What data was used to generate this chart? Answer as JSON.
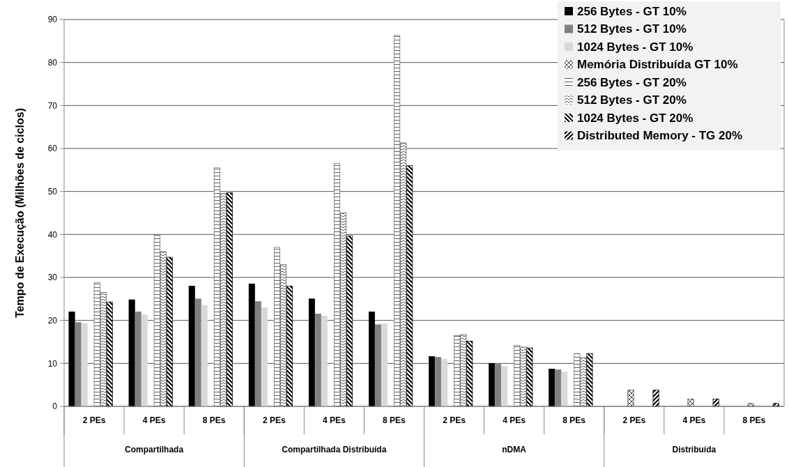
{
  "chart_data": {
    "type": "bar",
    "ylabel": "Tempo de Execução (Milhões de ciclos)",
    "categories": [
      "2 PEs",
      "4 PEs",
      "8 PEs",
      "2 PEs",
      "4 PEs",
      "8 PEs",
      "2 PEs",
      "4 PEs",
      "8 PEs",
      "2 PEs",
      "4 PEs",
      "8 PEs"
    ],
    "annotations": [
      "Compartilhada",
      "Compartilhada Distribuída",
      "nDMA",
      "Distribuída"
    ],
    "series": [
      {
        "name": "256 Bytes - GT 10%",
        "color": "#000000",
        "values": [
          22,
          24.8,
          28,
          28.5,
          25,
          22,
          11.6,
          10,
          8.7,
          null,
          null,
          null
        ]
      },
      {
        "name": "512 Bytes - GT 10%",
        "color": "#808080",
        "values": [
          19.5,
          22,
          25,
          24.4,
          21.5,
          19,
          11.4,
          9.8,
          8.5,
          null,
          null,
          null
        ]
      },
      {
        "name": "1024 Bytes - GT 10%",
        "color": "#d9d9d9",
        "values": [
          19.3,
          21.3,
          23.5,
          23,
          21,
          19.2,
          11,
          9.3,
          8,
          null,
          null,
          null
        ]
      },
      {
        "name": "Memória Distribuída GT 10%",
        "color": "#404040",
        "values": [
          null,
          null,
          null,
          null,
          null,
          null,
          null,
          null,
          null,
          3.8,
          1.7,
          0.7
        ]
      },
      {
        "name": "256 Bytes - GT 20%",
        "color": "#606060",
        "values": [
          28.8,
          40,
          55.5,
          37,
          56.5,
          86.3,
          16.5,
          14.2,
          12.3,
          null,
          null,
          null
        ]
      },
      {
        "name": "512 Bytes - GT 20%",
        "color": "#505050",
        "values": [
          26.5,
          36,
          49.5,
          33,
          45,
          61.3,
          16.7,
          13.8,
          11.3,
          null,
          null,
          null
        ]
      },
      {
        "name": "1024 Bytes - GT 20%",
        "color": "#000000",
        "values": [
          24.3,
          34.7,
          49.7,
          28,
          39.7,
          56,
          15.2,
          13.6,
          12.3,
          null,
          null,
          null
        ]
      },
      {
        "name": "Distributed Memory - TG 20%",
        "color": "#000000",
        "values": [
          null,
          null,
          null,
          null,
          null,
          null,
          null,
          null,
          null,
          3.8,
          1.7,
          0.7
        ]
      }
    ],
    "ylim": [
      0,
      90
    ],
    "yticks": [
      0,
      10,
      20,
      30,
      40,
      50,
      60,
      70,
      80,
      90
    ],
    "grid": "y",
    "legend": "top right"
  }
}
